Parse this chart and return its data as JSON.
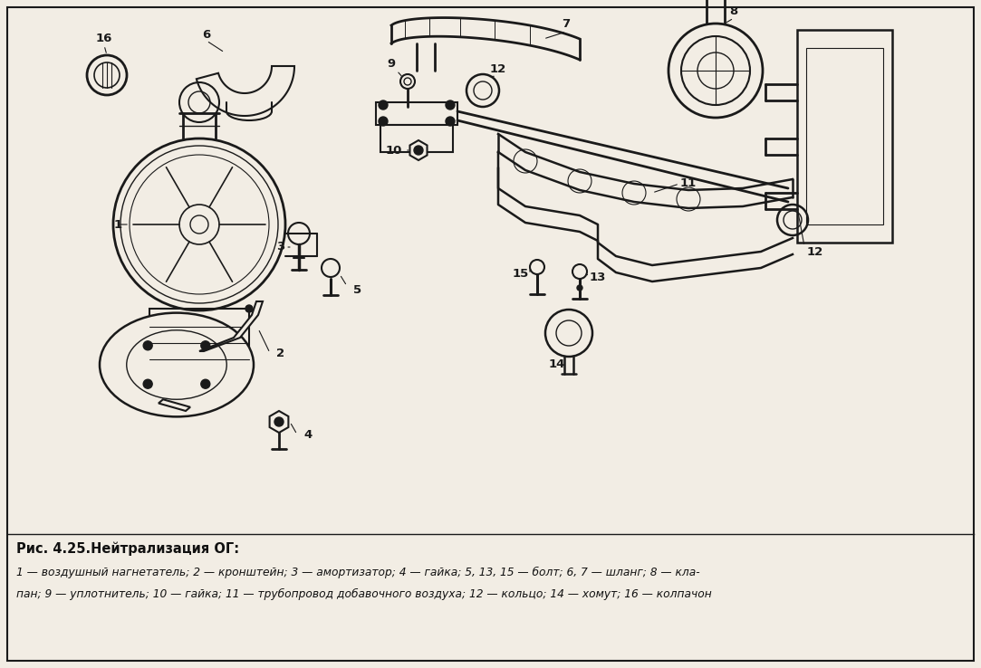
{
  "title_line1": "Рис. 4.25.Нейтрализация ОГ:",
  "caption_line2": "1 — воздушный нагнетатель; 2 — кронштейн; 3 — амортизатор; 4 — гайка; 5, 13, 15 — болт; 6, 7 — шланг; 8 — кла-",
  "caption_line3": "пан; 9 — уплотнитель; 10 — гайка; 11 — трубопровод добавочного воздуха; 12 — кольцо; 14 — хомут; 16 — колпачон",
  "bg_color": "#f2ede4",
  "border_color": "#2a2a2a",
  "text_color": "#111111",
  "fig_width": 10.83,
  "fig_height": 7.38,
  "dpi": 100
}
